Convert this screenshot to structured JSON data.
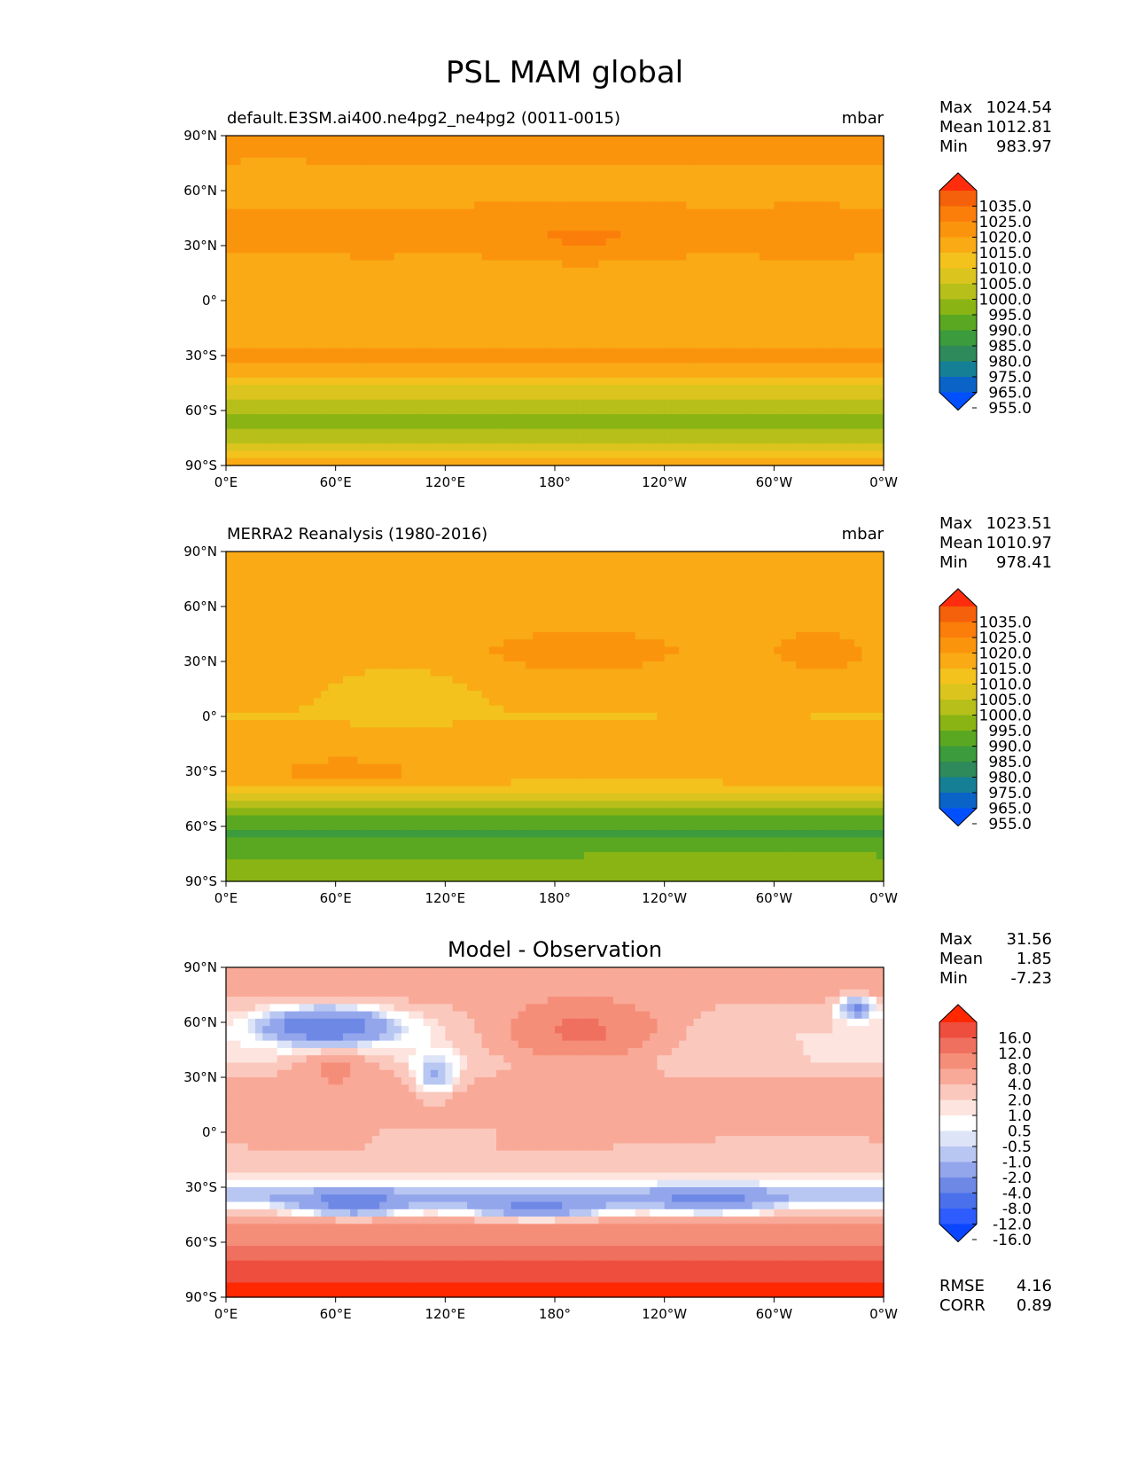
{
  "figure": {
    "title": "PSL MAM global"
  },
  "palettes": {
    "abs": [
      "#0050ff",
      "#0a64c8",
      "#157f96",
      "#2e8a5a",
      "#3c9b3c",
      "#5aa822",
      "#8ab414",
      "#b7bf1a",
      "#dcc41e",
      "#f3c21d",
      "#f9aa14",
      "#fb940d",
      "#fb7d0a",
      "#f5600a",
      "#ff2d0d"
    ],
    "diff": [
      "#0a46ff",
      "#2e5cff",
      "#4a70ec",
      "#6e88e6",
      "#93a6ec",
      "#b8c6f2",
      "#dde4f8",
      "#ffffff",
      "#fde4de",
      "#fbc8bd",
      "#f9a998",
      "#f58e79",
      "#f07060",
      "#ee4e3e",
      "#ff2800"
    ]
  },
  "chart_data": [
    {
      "type": "heatmap",
      "title": "default.E3SM.ai400.ne4pg2_ne4pg2 (0011-0015)",
      "units": "mbar",
      "stats": {
        "max_label": "Max",
        "max": "1024.54",
        "mean_label": "Mean",
        "mean": "1012.81",
        "min_label": "Min",
        "min": "983.97"
      },
      "colorbar": {
        "levels": [
          "1035.0",
          "1025.0",
          "1020.0",
          "1015.0",
          "1010.0",
          "1005.0",
          "1000.0",
          "995.0",
          "990.0",
          "985.0",
          "980.0",
          "975.0",
          "965.0",
          "955.0"
        ]
      },
      "x_ticks": [
        "0°E",
        "60°E",
        "120°E",
        "180°",
        "120°W",
        "60°W",
        "0°W"
      ],
      "y_ticks": [
        "90°N",
        "60°N",
        "30°N",
        "0°",
        "30°S",
        "60°S",
        "90°S"
      ],
      "xlim": [
        0,
        360
      ],
      "ylim": [
        -90,
        90
      ],
      "field": {
        "lats": [
          -90,
          -75,
          -65,
          -58,
          -50,
          -40,
          -30,
          -20,
          0,
          20,
          35,
          50,
          65,
          80,
          90
        ],
        "values": [
          1012,
          998,
          992,
          997,
          1002,
          1011,
          1016,
          1014,
          1012,
          1014,
          1016,
          1015,
          1014,
          1016,
          1018
        ],
        "features": [
          {
            "lon": 195,
            "lat": 35,
            "dlon": 45,
            "dlat": 12,
            "amp": 5
          },
          {
            "lon": 318,
            "lat": 35,
            "dlon": 25,
            "dlat": 10,
            "amp": 4
          },
          {
            "lon": 80,
            "lat": 35,
            "dlon": 25,
            "dlat": 10,
            "amp": 2
          },
          {
            "lon": 25,
            "lat": 70,
            "dlon": 20,
            "dlat": 8,
            "amp": -2
          }
        ]
      },
      "rmse": null
    },
    {
      "type": "heatmap",
      "title": "MERRA2 Reanalysis (1980-2016)",
      "units": "mbar",
      "stats": {
        "max_label": "Max",
        "max": "1023.51",
        "mean_label": "Mean",
        "mean": "1010.97",
        "min_label": "Min",
        "min": "978.41"
      },
      "colorbar": {
        "levels": [
          "1035.0",
          "1025.0",
          "1020.0",
          "1015.0",
          "1010.0",
          "1005.0",
          "1000.0",
          "995.0",
          "990.0",
          "985.0",
          "980.0",
          "975.0",
          "965.0",
          "955.0"
        ]
      },
      "x_ticks": [
        "0°E",
        "60°E",
        "120°E",
        "180°",
        "120°W",
        "60°W",
        "0°W"
      ],
      "y_ticks": [
        "90°N",
        "60°N",
        "30°N",
        "0°",
        "30°S",
        "60°S",
        "90°S"
      ],
      "xlim": [
        0,
        360
      ],
      "ylim": [
        -90,
        90
      ],
      "field": {
        "lats": [
          -90,
          -80,
          -70,
          -62,
          -55,
          -48,
          -40,
          -32,
          -20,
          0,
          20,
          35,
          50,
          65,
          80,
          90
        ],
        "values": [
          995,
          992,
          987,
          984,
          990,
          998,
          1006,
          1014,
          1014,
          1010,
          1012,
          1014,
          1013,
          1011,
          1013,
          1015
        ],
        "features": [
          {
            "lon": 195,
            "lat": 35,
            "dlon": 40,
            "dlat": 10,
            "amp": 6
          },
          {
            "lon": 325,
            "lat": 35,
            "dlon": 20,
            "dlat": 10,
            "amp": 5
          },
          {
            "lon": 65,
            "lat": -30,
            "dlon": 30,
            "dlat": 6,
            "amp": 3
          },
          {
            "lon": 95,
            "lat": 15,
            "dlon": 40,
            "dlat": 18,
            "amp": -4
          }
        ]
      },
      "rmse": null
    },
    {
      "type": "heatmap",
      "title": "Model - Observation",
      "units": "",
      "stats": {
        "max_label": "Max",
        "max": "31.56",
        "mean_label": "Mean",
        "mean": "1.85",
        "min_label": "Min",
        "min": "-7.23"
      },
      "colorbar": {
        "levels": [
          "16.0",
          "12.0",
          "8.0",
          "4.0",
          "2.0",
          "1.0",
          "0.5",
          "-0.5",
          "-1.0",
          "-2.0",
          "-4.0",
          "-8.0",
          "-12.0",
          "-16.0"
        ]
      },
      "x_ticks": [
        "0°E",
        "60°E",
        "120°E",
        "180°",
        "120°W",
        "60°W",
        "0°W"
      ],
      "y_ticks": [
        "90°N",
        "60°N",
        "30°N",
        "0°",
        "30°S",
        "60°S",
        "90°S"
      ],
      "xlim": [
        0,
        360
      ],
      "ylim": [
        -90,
        90
      ],
      "field": {
        "lats": [
          -90,
          -75,
          -65,
          -55,
          -45,
          -35,
          -20,
          0,
          20,
          40,
          55,
          70,
          90
        ],
        "values": [
          18,
          14,
          10,
          6,
          2,
          -2,
          2,
          2,
          3,
          1,
          1,
          2,
          4
        ],
        "features": [
          {
            "lon": 70,
            "lat": -40,
            "dlon": 30,
            "dlat": 7,
            "amp": -5
          },
          {
            "lon": 170,
            "lat": -42,
            "dlon": 40,
            "dlat": 7,
            "amp": -5
          },
          {
            "lon": 265,
            "lat": -38,
            "dlon": 30,
            "dlat": 8,
            "amp": -4
          },
          {
            "lon": 55,
            "lat": 58,
            "dlon": 35,
            "dlat": 10,
            "amp": -8
          },
          {
            "lon": 115,
            "lat": 30,
            "dlon": 12,
            "dlat": 12,
            "amp": -4
          },
          {
            "lon": 195,
            "lat": 55,
            "dlon": 40,
            "dlat": 15,
            "amp": 8
          },
          {
            "lon": 345,
            "lat": 68,
            "dlon": 10,
            "dlat": 6,
            "amp": -6
          },
          {
            "lon": 60,
            "lat": 35,
            "dlon": 20,
            "dlat": 10,
            "amp": 3
          }
        ]
      },
      "rmse": {
        "rmse_label": "RMSE",
        "rmse": "4.16",
        "corr_label": "CORR",
        "corr": "0.89"
      }
    }
  ]
}
